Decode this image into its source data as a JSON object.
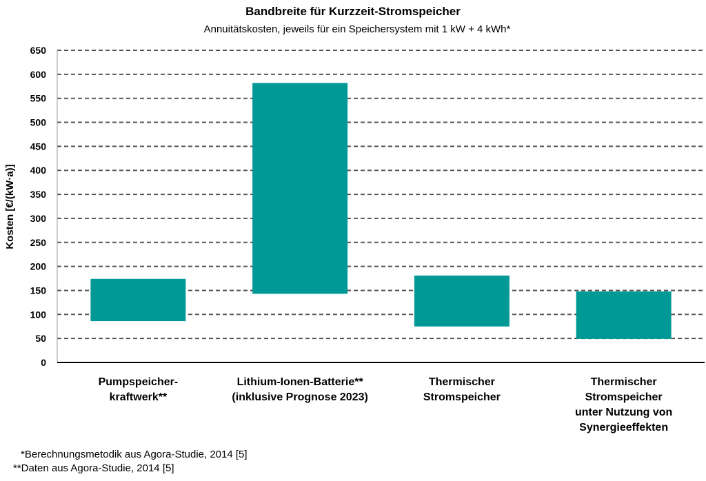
{
  "chart_data": {
    "type": "bar",
    "subtype": "floating-range",
    "title": "Bandbreite für Kurzzeit-Stromspeicher",
    "subtitle": "Annuitätskosten, jeweils für ein Speichersystem mit 1 kW + 4 kWh*",
    "ylabel": "Kosten [€/(kW·a)]",
    "xlabel": "",
    "ylim": [
      0,
      650
    ],
    "yticks": [
      0,
      50,
      100,
      150,
      200,
      250,
      300,
      350,
      400,
      450,
      500,
      550,
      600,
      650
    ],
    "grid": true,
    "categories": [
      [
        "Pumpspeicher-",
        "kraftwerk**"
      ],
      [
        "Lithium-Ionen-Batterie**",
        "(inklusive Prognose 2023)"
      ],
      [
        "Thermischer",
        "Stromspeicher"
      ],
      [
        "Thermischer",
        "Stromspeicher",
        "unter Nutzung von",
        "Synergieeffekten"
      ]
    ],
    "ranges": [
      {
        "low": 86,
        "high": 174
      },
      {
        "low": 143,
        "high": 582
      },
      {
        "low": 75,
        "high": 181
      },
      {
        "low": 49,
        "high": 148
      }
    ],
    "bar_color": "#009995",
    "footnotes": [
      "*Berechnungsmetodik aus Agora-Studie, 2014 [5]",
      "**Daten aus Agora-Studie, 2014 [5]"
    ]
  }
}
